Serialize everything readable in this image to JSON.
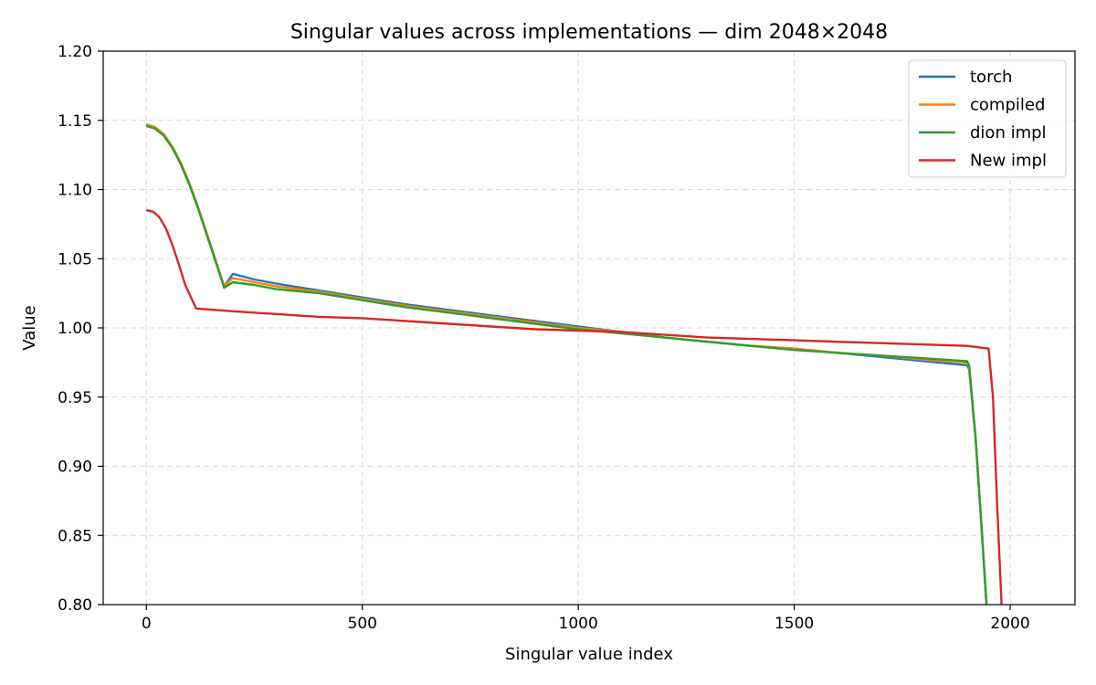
{
  "chart_data": {
    "type": "line",
    "title": "Singular values across implementations — dim 2048×2048",
    "xlabel": "Singular value index",
    "ylabel": "Value",
    "xlim": [
      -100,
      2150
    ],
    "ylim": [
      0.8,
      1.2
    ],
    "xticks": [
      0,
      500,
      1000,
      1500,
      2000
    ],
    "xtick_labels": [
      "0",
      "500",
      "1000",
      "1500",
      "2000"
    ],
    "yticks": [
      0.8,
      0.85,
      0.9,
      0.95,
      1.0,
      1.05,
      1.1,
      1.15,
      1.2
    ],
    "ytick_labels": [
      "0.80",
      "0.85",
      "0.90",
      "0.95",
      "1.00",
      "1.05",
      "1.10",
      "1.15",
      "1.20"
    ],
    "grid": true,
    "legend_position": "top-right",
    "series": [
      {
        "name": "torch",
        "color": "#1f77b4",
        "x": [
          0,
          20,
          40,
          60,
          80,
          100,
          120,
          140,
          160,
          180,
          200,
          250,
          300,
          400,
          500,
          600,
          700,
          800,
          900,
          1000,
          1100,
          1200,
          1300,
          1400,
          1500,
          1600,
          1700,
          1800,
          1900,
          1905,
          1920,
          1935,
          1945
        ],
        "y": [
          1.147,
          1.145,
          1.14,
          1.131,
          1.119,
          1.104,
          1.087,
          1.068,
          1.049,
          1.03,
          1.039,
          1.035,
          1.032,
          1.027,
          1.022,
          1.017,
          1.013,
          1.009,
          1.005,
          1.001,
          0.997,
          0.993,
          0.99,
          0.987,
          0.985,
          0.982,
          0.979,
          0.976,
          0.973,
          0.97,
          0.92,
          0.85,
          0.8
        ]
      },
      {
        "name": "compiled",
        "color": "#ff7f0e",
        "x": [
          0,
          20,
          40,
          60,
          80,
          100,
          120,
          140,
          160,
          180,
          200,
          250,
          300,
          400,
          500,
          600,
          700,
          800,
          900,
          1000,
          1100,
          1200,
          1300,
          1400,
          1500,
          1600,
          1700,
          1800,
          1900,
          1905,
          1920,
          1935,
          1945
        ],
        "y": [
          1.147,
          1.145,
          1.14,
          1.131,
          1.119,
          1.104,
          1.087,
          1.068,
          1.049,
          1.03,
          1.036,
          1.033,
          1.03,
          1.026,
          1.021,
          1.016,
          1.012,
          1.008,
          1.004,
          1.0,
          0.997,
          0.993,
          0.99,
          0.987,
          0.985,
          0.982,
          0.98,
          0.977,
          0.975,
          0.972,
          0.92,
          0.85,
          0.8
        ]
      },
      {
        "name": "dion impl",
        "color": "#2ca02c",
        "x": [
          0,
          20,
          40,
          60,
          80,
          100,
          120,
          140,
          160,
          180,
          200,
          250,
          300,
          400,
          500,
          600,
          700,
          800,
          900,
          1000,
          1100,
          1200,
          1300,
          1400,
          1500,
          1600,
          1700,
          1800,
          1900,
          1905,
          1920,
          1935,
          1945
        ],
        "y": [
          1.146,
          1.144,
          1.139,
          1.13,
          1.118,
          1.103,
          1.086,
          1.067,
          1.048,
          1.029,
          1.033,
          1.031,
          1.028,
          1.025,
          1.02,
          1.015,
          1.011,
          1.007,
          1.003,
          0.999,
          0.996,
          0.993,
          0.99,
          0.987,
          0.984,
          0.982,
          0.98,
          0.978,
          0.976,
          0.973,
          0.92,
          0.85,
          0.8
        ]
      },
      {
        "name": "New impl",
        "color": "#d62728",
        "x": [
          0,
          15,
          30,
          45,
          60,
          75,
          90,
          115,
          200,
          300,
          400,
          500,
          600,
          700,
          800,
          900,
          1000,
          1100,
          1200,
          1300,
          1400,
          1500,
          1600,
          1700,
          1800,
          1900,
          1950,
          1960,
          1970,
          1980
        ],
        "y": [
          1.085,
          1.084,
          1.08,
          1.072,
          1.06,
          1.046,
          1.031,
          1.014,
          1.012,
          1.01,
          1.008,
          1.007,
          1.005,
          1.003,
          1.001,
          0.999,
          0.998,
          0.997,
          0.995,
          0.993,
          0.992,
          0.991,
          0.99,
          0.989,
          0.988,
          0.987,
          0.985,
          0.95,
          0.87,
          0.8
        ]
      }
    ]
  }
}
